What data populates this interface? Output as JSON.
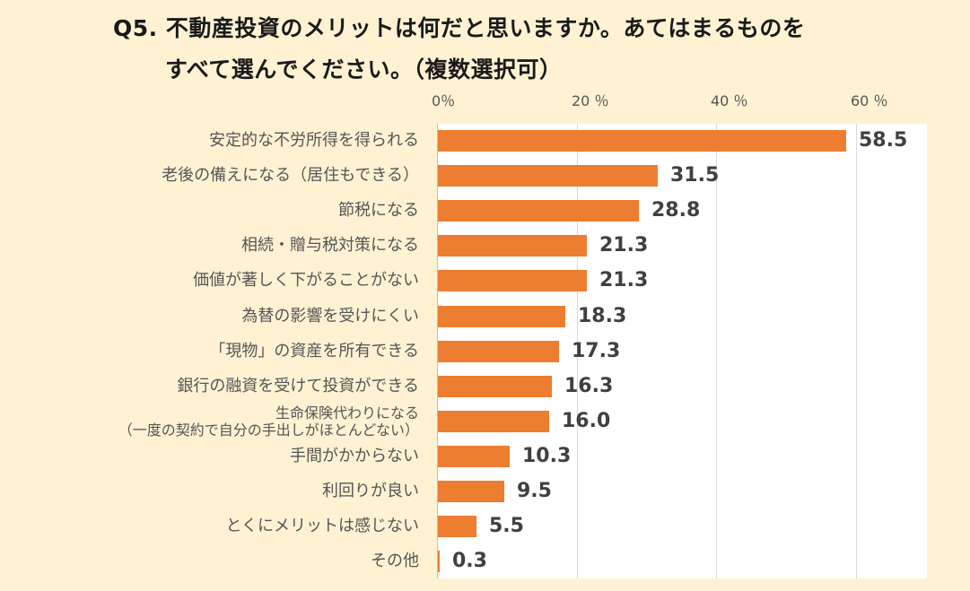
{
  "title": {
    "line1": "Q5. 不動産投資のメリットは何だと思いますか。あてはまるものを",
    "line2": "すべて選んでください。（複数選択可）"
  },
  "chart_data": {
    "type": "bar",
    "orientation": "horizontal",
    "title": "Q5. 不動産投資のメリットは何だと思いますか。あてはまるものを すべて選んでください。（複数選択可）",
    "categories": [
      "安定的な不労所得を得られる",
      "老後の備えになる（居住もできる）",
      "節税になる",
      "相続・贈与税対策になる",
      "価値が著しく下がることがない",
      "為替の影響を受けにくい",
      "「現物」の資産を所有できる",
      "銀行の融資を受けて投資ができる",
      "生命保険代わりになる\n（一度の契約で自分の手出しがほとんどない）",
      "手間がかからない",
      "利回りが良い",
      "とくにメリットは感じない",
      "その他"
    ],
    "values": [
      58.5,
      31.5,
      28.8,
      21.3,
      21.3,
      18.3,
      17.3,
      16.3,
      16.0,
      10.3,
      9.5,
      5.5,
      0.3
    ],
    "value_labels": [
      "58.5",
      "31.5",
      "28.8",
      "21.3",
      "21.3",
      "18.3",
      "17.3",
      "16.3",
      "16.0",
      "10.3",
      "9.5",
      "5.5",
      "0.3"
    ],
    "tick_labels": [
      "0％",
      "20 ％",
      "40 ％",
      "60 ％"
    ],
    "ticks": [
      0,
      20,
      40,
      60
    ],
    "xlim": [
      0,
      70
    ],
    "grid": true,
    "bar_color": "#ed7d31"
  }
}
